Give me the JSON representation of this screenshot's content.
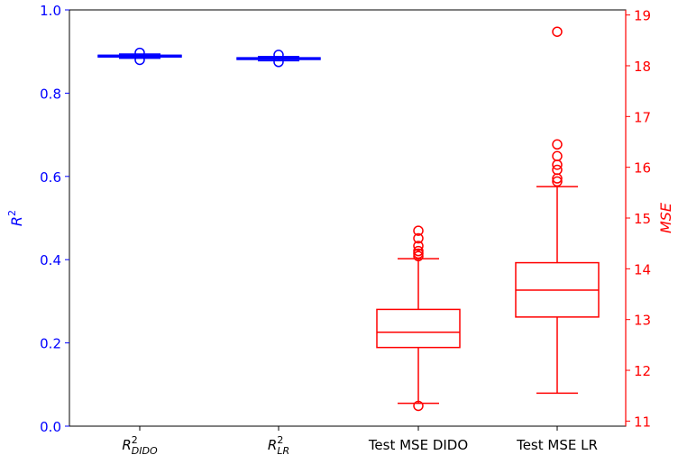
{
  "chart_data": {
    "type": "box",
    "categories": [
      {
        "base": "R",
        "sup": "2",
        "sub": "DIDO"
      },
      {
        "base": "R",
        "sup": "2",
        "sub": "LR"
      },
      {
        "text": "Test MSE DIDO"
      },
      {
        "text": "Test MSE LR"
      }
    ],
    "left_axis": {
      "label": {
        "base": "R",
        "sup": "2"
      },
      "ylim": [
        0.0,
        1.0
      ],
      "ticks": [
        "0.0",
        "0.2",
        "0.4",
        "0.6",
        "0.8",
        "1.0"
      ],
      "color": "#0000ff"
    },
    "right_axis": {
      "label": "MSE",
      "ylim": [
        10.9,
        19.1
      ],
      "ticks": [
        "11",
        "12",
        "13",
        "14",
        "15",
        "16",
        "17",
        "18",
        "19"
      ],
      "color": "#ff0000"
    },
    "boxes": [
      {
        "category": 0,
        "axis": "left",
        "color": "#0000ff",
        "whisker_low": 0.884,
        "q1": 0.887,
        "median": 0.889,
        "q3": 0.891,
        "whisker_high": 0.894,
        "fliers": [
          0.88,
          0.897
        ]
      },
      {
        "category": 1,
        "axis": "left",
        "color": "#0000ff",
        "whisker_low": 0.878,
        "q1": 0.881,
        "median": 0.883,
        "q3": 0.885,
        "whisker_high": 0.888,
        "fliers": [
          0.875,
          0.892
        ]
      },
      {
        "category": 2,
        "axis": "right",
        "color": "#ff0000",
        "whisker_low": 11.35,
        "q1": 12.45,
        "median": 12.75,
        "q3": 13.2,
        "whisker_high": 14.2,
        "fliers": [
          11.3,
          14.25,
          14.3,
          14.35,
          14.45,
          14.6,
          14.75
        ]
      },
      {
        "category": 3,
        "axis": "right",
        "color": "#ff0000",
        "whisker_low": 11.55,
        "q1": 13.05,
        "median": 13.58,
        "q3": 14.12,
        "whisker_high": 15.62,
        "fliers": [
          15.72,
          15.78,
          15.95,
          16.05,
          16.22,
          16.45,
          18.67
        ]
      }
    ]
  }
}
